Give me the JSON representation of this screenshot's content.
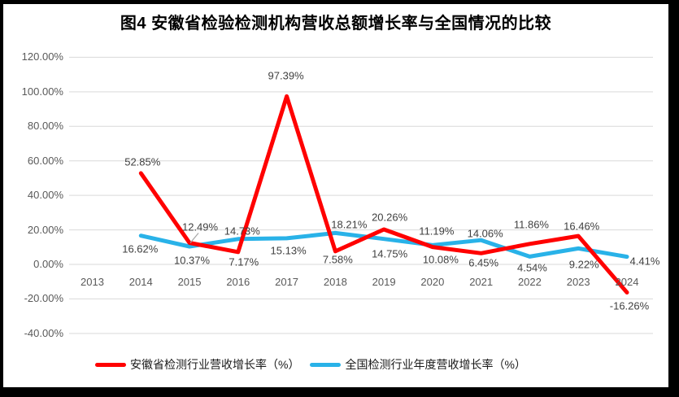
{
  "title": "图4 安徽省检验检测机构营收总额增长率与全国情况的比较",
  "frame": {
    "color": "#000000",
    "background": "#FFFFFF"
  },
  "chart_data": {
    "type": "line",
    "title": "图4 安徽省检验检测机构营收总额增长率与全国情况的比较",
    "categories": [
      "2013",
      "2014",
      "2015",
      "2016",
      "2017",
      "2018",
      "2019",
      "2020",
      "2021",
      "2022",
      "2023",
      "2024"
    ],
    "series": [
      {
        "name": "安徽省检测行业营收增长率（%）",
        "color": "#FF0000",
        "values": [
          null,
          52.85,
          12.49,
          7.17,
          97.39,
          7.58,
          20.26,
          10.08,
          6.45,
          11.86,
          16.46,
          -16.26
        ],
        "labels": [
          null,
          "52.85%",
          "12.49%",
          "7.17%",
          "97.39%",
          "7.58%",
          "20.26%",
          "10.08%",
          "6.45%",
          "11.86%",
          "16.46%",
          "-16.26%"
        ],
        "label_offsets": [
          null,
          [
            2,
            -14
          ],
          [
            13,
            -20
          ],
          [
            7,
            12
          ],
          [
            -1,
            -25
          ],
          [
            3,
            10
          ],
          [
            7,
            -15
          ],
          [
            10,
            15
          ],
          [
            3,
            12
          ],
          [
            2,
            -24
          ],
          [
            4,
            -12
          ],
          [
            3,
            17
          ]
        ]
      },
      {
        "name": "全国检测行业年度营收增长率（%）",
        "color": "#29B2E8",
        "values": [
          null,
          16.62,
          10.37,
          14.73,
          15.13,
          18.21,
          14.75,
          11.19,
          14.06,
          4.54,
          9.22,
          4.41
        ],
        "labels": [
          null,
          "16.62%",
          "10.37%",
          "14.73%",
          "15.13%",
          "18.21%",
          "14.75%",
          "11.19%",
          "14.06%",
          "4.54%",
          "9.22%",
          "4.41%"
        ],
        "label_offsets": [
          null,
          [
            -1,
            16
          ],
          [
            3,
            17
          ],
          [
            5,
            -10
          ],
          [
            2,
            15
          ],
          [
            17,
            -10
          ],
          [
            7,
            18
          ],
          [
            5,
            -17
          ],
          [
            5,
            -8
          ],
          [
            3,
            14
          ],
          [
            7,
            20
          ],
          [
            22,
            5
          ]
        ]
      }
    ],
    "ylim": [
      -40,
      120
    ],
    "ytick_step": 20,
    "ytick_labels": [
      "120.00%",
      "100.00%",
      "80.00%",
      "60.00%",
      "40.00%",
      "20.00%",
      "0.00%",
      "-20.00%",
      "-40.00%"
    ],
    "grid": true,
    "legend_position": "bottom",
    "colors": {
      "grid": "#D9D9D9",
      "axis_text": "#595959",
      "data_label_text": "#404040",
      "leader_line": "#A6A6A6"
    },
    "label_leader": {
      "series": 0,
      "index": 2
    }
  }
}
